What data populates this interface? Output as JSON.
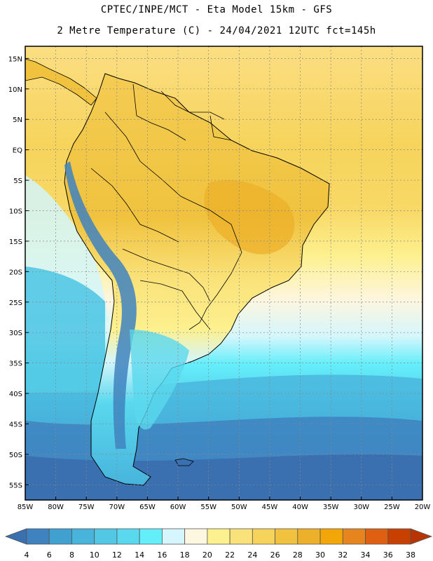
{
  "header": {
    "line1": "CPTEC/INPE/MCT -  Eta Model 15km - GFS",
    "line2": "2 Metre Temperature (C) - 24/04/2021 12UTC fct=145h"
  },
  "map": {
    "lat_labels": [
      "15N",
      "10N",
      "5N",
      "EQ",
      "5S",
      "10S",
      "15S",
      "20S",
      "25S",
      "30S",
      "35S",
      "40S",
      "45S",
      "50S",
      "55S"
    ],
    "lat_values": [
      15,
      10,
      5,
      0,
      -5,
      -10,
      -15,
      -20,
      -25,
      -30,
      -35,
      -40,
      -45,
      -50,
      -55
    ],
    "lon_labels": [
      "85W",
      "80W",
      "75W",
      "70W",
      "65W",
      "60W",
      "55W",
      "50W",
      "45W",
      "40W",
      "35W",
      "30W",
      "25W",
      "20W"
    ],
    "lon_values": [
      -85,
      -80,
      -75,
      -70,
      -65,
      -60,
      -55,
      -50,
      -45,
      -40,
      -35,
      -30,
      -25,
      -20
    ],
    "extent": {
      "lon_min": -85,
      "lon_max": -20,
      "lat_min": -57.5,
      "lat_max": 17
    }
  },
  "colorbar": {
    "labels": [
      "4",
      "6",
      "8",
      "10",
      "12",
      "14",
      "16",
      "18",
      "20",
      "22",
      "24",
      "26",
      "28",
      "30",
      "32",
      "34",
      "36",
      "38"
    ],
    "colors": [
      "#3a6fb0",
      "#3e82c0",
      "#40a0cf",
      "#48b4dc",
      "#52c8e4",
      "#5ad8ee",
      "#64eefa",
      "#d4f6fc",
      "#fdf6e0",
      "#fdf08e",
      "#fae27a",
      "#f6d45c",
      "#f0c23e",
      "#ecb02a",
      "#f2a608",
      "#e6841e",
      "#de6010",
      "#c84000",
      "#b83404"
    ]
  }
}
